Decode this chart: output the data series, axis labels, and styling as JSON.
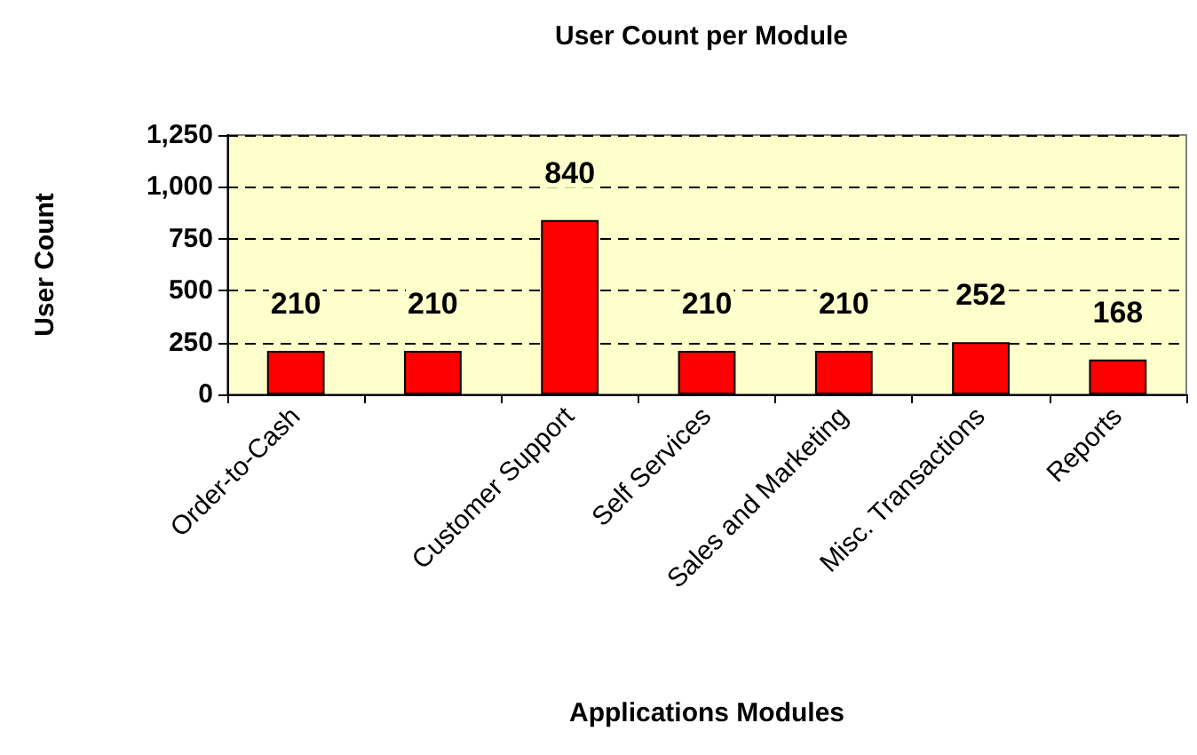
{
  "chart_data": {
    "type": "bar",
    "title": "User Count per Module",
    "xlabel": "Applications Modules",
    "ylabel": "User Count",
    "categories": [
      "Order-to-Cash",
      null,
      "Customer Support",
      "Self Services",
      "Sales and Marketing",
      "Misc. Transactions",
      "Reports"
    ],
    "values": [
      210,
      210,
      840,
      210,
      210,
      252,
      168
    ],
    "color": "#ff0000",
    "ylim": [
      0,
      1250
    ],
    "yticks": [
      0,
      250,
      500,
      750,
      {
        "value": 1000,
        "label": "1,000"
      },
      {
        "value": 1250,
        "label": "1,250"
      }
    ],
    "grid": "y",
    "data_labels": true
  }
}
